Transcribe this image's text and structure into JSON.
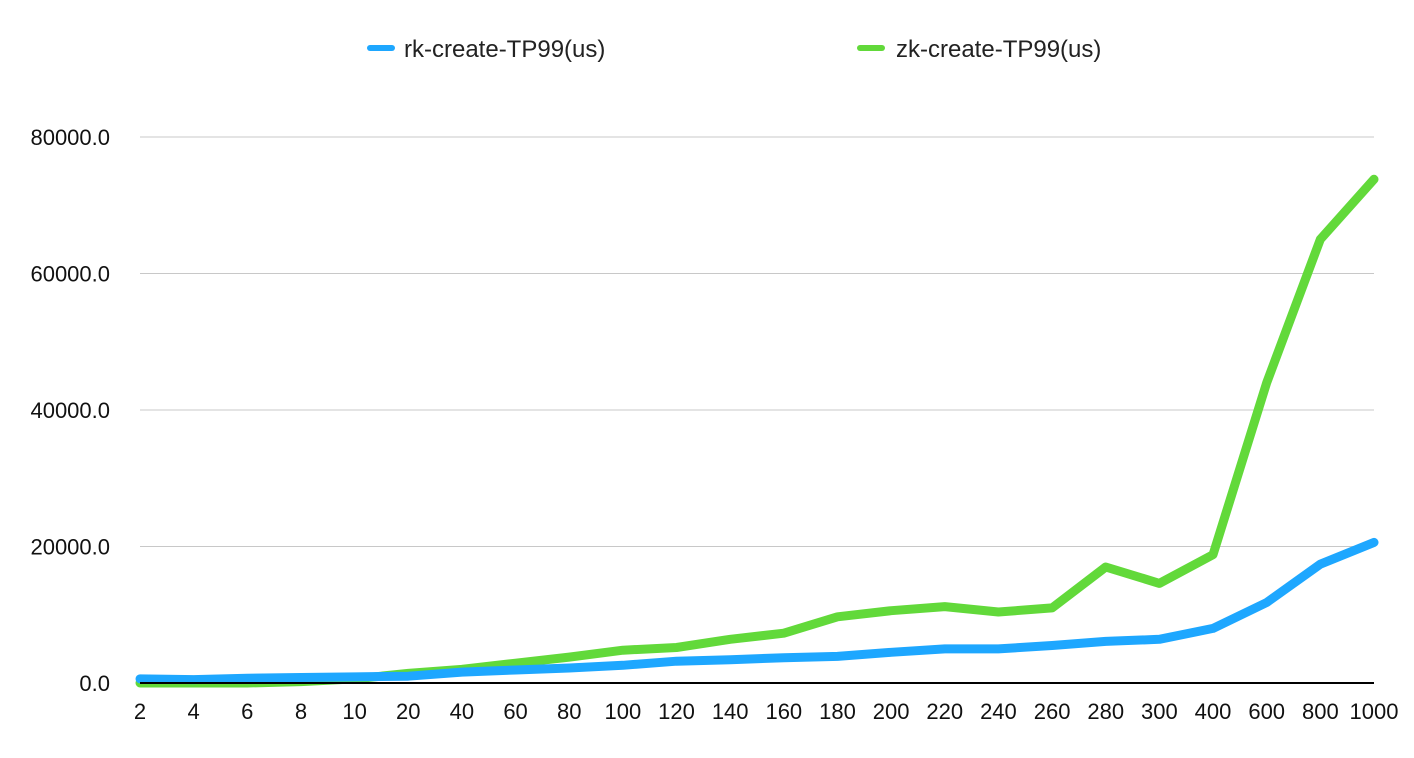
{
  "chart_data": {
    "type": "line",
    "title": "",
    "xlabel": "",
    "ylabel": "",
    "categories": [
      "2",
      "4",
      "6",
      "8",
      "10",
      "20",
      "40",
      "60",
      "80",
      "100",
      "120",
      "140",
      "160",
      "180",
      "200",
      "220",
      "240",
      "260",
      "280",
      "300",
      "400",
      "600",
      "800",
      "1000"
    ],
    "series": [
      {
        "name": "rk-create-TP99(us)",
        "color": "#1ea7ff",
        "values": [
          600,
          500,
          700,
          800,
          900,
          1000,
          1600,
          1900,
          2200,
          2600,
          3200,
          3400,
          3700,
          3900,
          4500,
          5000,
          5000,
          5500,
          6100,
          6400,
          8000,
          11800,
          17400,
          20600
        ]
      },
      {
        "name": "zk-create-TP99(us)",
        "color": "#62d93a",
        "values": [
          0,
          0,
          0,
          200,
          600,
          1400,
          2000,
          2900,
          3800,
          4800,
          5200,
          6400,
          7300,
          9700,
          10600,
          11200,
          10400,
          11000,
          17000,
          14600,
          18800,
          44000,
          65000,
          73800
        ]
      }
    ],
    "ylim": [
      0,
      80000
    ],
    "yticks": [
      "0.0",
      "20000.0",
      "40000.0",
      "60000.0",
      "80000.0"
    ],
    "ytick_values": [
      0,
      20000,
      40000,
      60000,
      80000
    ],
    "grid": true,
    "legend_position": "top"
  }
}
